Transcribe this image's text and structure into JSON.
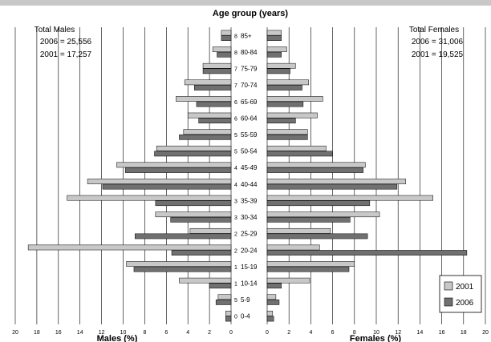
{
  "chart_data": {
    "type": "bar",
    "orientation": "horizontal",
    "title": "Age group (years)",
    "categories": [
      "0-4",
      "5-9",
      "10-14",
      "15-19",
      "20-24",
      "25-29",
      "30-34",
      "35-39",
      "40-44",
      "45-49",
      "50-54",
      "55-59",
      "60-64",
      "65-69",
      "70-74",
      "75-79",
      "80-84",
      "85+"
    ],
    "category_codes": [
      "0",
      "5",
      "1",
      "1",
      "2",
      "2",
      "3",
      "3",
      "4",
      "4",
      "5",
      "5",
      "6",
      "6",
      "7",
      "7",
      "8",
      "8"
    ],
    "males": {
      "label": "Males (%)",
      "xlim": [
        0,
        20
      ],
      "series": [
        {
          "name": "2001",
          "values": [
            0.5,
            1.2,
            4.8,
            9.7,
            18.8,
            3.8,
            7.0,
            15.2,
            13.3,
            10.6,
            6.9,
            4.4,
            4.0,
            5.1,
            4.3,
            2.6,
            1.7,
            0.9
          ]
        },
        {
          "name": "2006",
          "values": [
            0.5,
            1.4,
            2.0,
            9.0,
            5.5,
            8.9,
            5.6,
            7.0,
            11.9,
            9.8,
            7.1,
            4.8,
            3.0,
            3.2,
            3.4,
            2.6,
            1.3,
            0.9
          ]
        }
      ]
    },
    "females": {
      "label": "Females (%)",
      "xlim": [
        0,
        20
      ],
      "series": [
        {
          "name": "2001",
          "values": [
            0.5,
            0.8,
            3.9,
            8.0,
            4.8,
            5.8,
            10.3,
            15.2,
            12.7,
            9.0,
            5.4,
            3.7,
            4.6,
            5.1,
            3.8,
            2.6,
            1.8,
            1.3
          ]
        },
        {
          "name": "2006",
          "values": [
            0.6,
            1.1,
            1.3,
            7.5,
            18.3,
            9.2,
            7.6,
            9.4,
            11.9,
            8.8,
            6.0,
            3.7,
            2.6,
            3.3,
            3.2,
            2.1,
            1.3,
            1.3
          ]
        }
      ]
    },
    "ticks": [
      "0",
      "2",
      "4",
      "6",
      "8",
      "10",
      "12",
      "14",
      "16",
      "18",
      "20"
    ],
    "grid": true,
    "legend": {
      "position": "bottom-right",
      "entries": [
        "2001",
        "2006"
      ]
    },
    "colors": {
      "2001": "#c8c8c8",
      "2006": "#707070",
      "edge": "#000000",
      "grid": "#000000"
    },
    "annotations": {
      "males_box": {
        "title": "Total Males",
        "line1": "2006  = 25,556",
        "line2": "2001  = 17,257"
      },
      "females_box": {
        "title": "Total Females",
        "line1": "2006  = 31,006",
        "line2": "2001  = 19,525"
      }
    }
  }
}
